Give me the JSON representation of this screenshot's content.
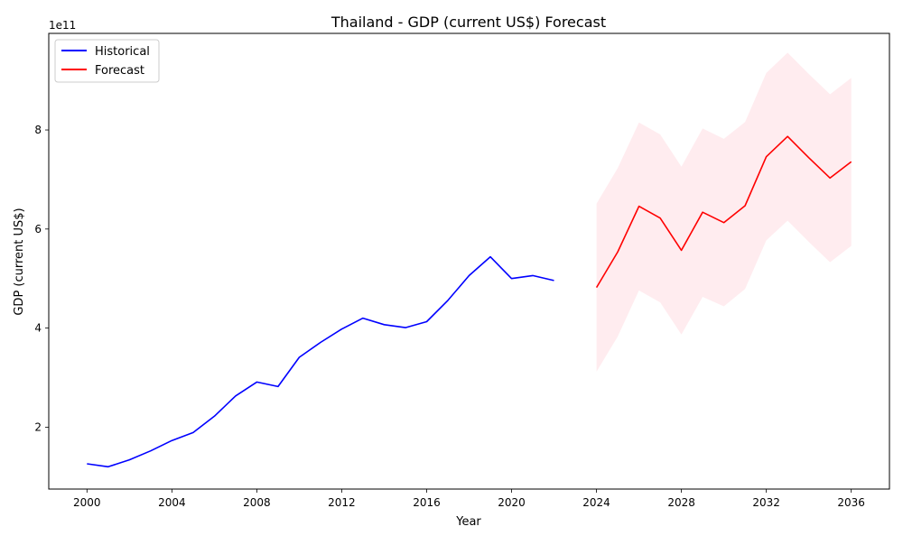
{
  "chart_data": {
    "type": "line",
    "title": "Thailand - GDP (current US$) Forecast",
    "xlabel": "Year",
    "ylabel": "GDP (current US$)",
    "y_offset_label": "1e11",
    "xlim": [
      1998.2,
      2037.8
    ],
    "ylim": [
      75000000000.0,
      995000000000.0
    ],
    "x_ticks": [
      2000,
      2004,
      2008,
      2012,
      2016,
      2020,
      2024,
      2028,
      2032,
      2036
    ],
    "y_ticks": [
      {
        "value": 200000000000.0,
        "label": "2"
      },
      {
        "value": 400000000000.0,
        "label": "4"
      },
      {
        "value": 600000000000.0,
        "label": "6"
      },
      {
        "value": 800000000000.0,
        "label": "8"
      }
    ],
    "grid": false,
    "legend": {
      "position": "top-left",
      "entries": [
        "Historical",
        "Forecast"
      ]
    },
    "series": [
      {
        "name": "Historical",
        "color": "#0000ff",
        "x": [
          2000,
          2001,
          2002,
          2003,
          2004,
          2005,
          2006,
          2007,
          2008,
          2009,
          2010,
          2011,
          2012,
          2013,
          2014,
          2015,
          2016,
          2017,
          2018,
          2019,
          2020,
          2021,
          2022
        ],
        "values": [
          126000000000.0,
          120000000000.0,
          134000000000.0,
          152000000000.0,
          173000000000.0,
          189000000000.0,
          222000000000.0,
          263000000000.0,
          291000000000.0,
          282000000000.0,
          341000000000.0,
          371000000000.0,
          398000000000.0,
          420000000000.0,
          407000000000.0,
          401000000000.0,
          413000000000.0,
          456000000000.0,
          506000000000.0,
          544000000000.0,
          500000000000.0,
          506000000000.0,
          496000000000.0
        ]
      },
      {
        "name": "Forecast",
        "color": "#ff0000",
        "x": [
          2024,
          2025,
          2026,
          2027,
          2028,
          2029,
          2030,
          2031,
          2032,
          2033,
          2034,
          2035,
          2036
        ],
        "values": [
          482000000000.0,
          554000000000.0,
          646000000000.0,
          622000000000.0,
          557000000000.0,
          634000000000.0,
          613000000000.0,
          647000000000.0,
          746000000000.0,
          787000000000.0,
          744000000000.0,
          703000000000.0,
          736000000000.0
        ],
        "band_lower": [
          312000000000.0,
          383000000000.0,
          476000000000.0,
          452000000000.0,
          387000000000.0,
          463000000000.0,
          444000000000.0,
          479000000000.0,
          577000000000.0,
          617000000000.0,
          574000000000.0,
          533000000000.0,
          566000000000.0
        ],
        "band_upper": [
          651000000000.0,
          723000000000.0,
          815000000000.0,
          791000000000.0,
          726000000000.0,
          803000000000.0,
          782000000000.0,
          816000000000.0,
          915000000000.0,
          956000000000.0,
          913000000000.0,
          872000000000.0,
          905000000000.0
        ],
        "band_color": "#ffc0cb"
      }
    ]
  }
}
